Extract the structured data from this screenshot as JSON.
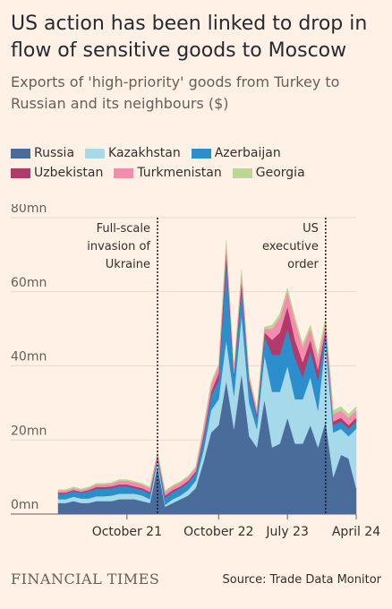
{
  "title": "US action has been linked to drop in flow of sensitive goods to Moscow",
  "subtitle": "Exports of 'high-priority' goods from Turkey to Russian and its neighbours ($)",
  "source": "Source: Trade Data Monitor",
  "brand": "FINANCIAL TIMES",
  "chart_data": {
    "type": "area",
    "stacked": true,
    "x": [
      "2021-01",
      "2021-02",
      "2021-03",
      "2021-04",
      "2021-05",
      "2021-06",
      "2021-07",
      "2021-08",
      "2021-09",
      "2021-10",
      "2021-11",
      "2021-12",
      "2022-01",
      "2022-02",
      "2022-03",
      "2022-04",
      "2022-05",
      "2022-06",
      "2022-07",
      "2022-08",
      "2022-09",
      "2022-10",
      "2022-11",
      "2022-12",
      "2023-01",
      "2023-02",
      "2023-03",
      "2023-04",
      "2023-05",
      "2023-06",
      "2023-07",
      "2023-08",
      "2023-09",
      "2023-10",
      "2023-11",
      "2023-12",
      "2024-01",
      "2024-02",
      "2024-03",
      "2024-04"
    ],
    "xticks": [
      {
        "label": "October 21",
        "month": "2021-10"
      },
      {
        "label": "October 22",
        "month": "2022-10"
      },
      {
        "label": "July 23",
        "month": "2023-07"
      },
      {
        "label": "April 24",
        "month": "2024-04"
      }
    ],
    "ylim": [
      0,
      80
    ],
    "yticks": [
      {
        "value": 0,
        "label": "0mn"
      },
      {
        "value": 20,
        "label": "20mn"
      },
      {
        "value": 40,
        "label": "40mn"
      },
      {
        "value": 60,
        "label": "60mn"
      },
      {
        "value": 80,
        "label": "80mn"
      }
    ],
    "series": [
      {
        "name": "Russia",
        "color": "#4a6c9b",
        "values": [
          3,
          3,
          3.5,
          3,
          3,
          3.5,
          3.5,
          3.5,
          4,
          4,
          4,
          3.5,
          3,
          13,
          2,
          3,
          4,
          5,
          7,
          14,
          22,
          24,
          36,
          23,
          38,
          21,
          18,
          31,
          18,
          19,
          26,
          19,
          19,
          24,
          18,
          25,
          10,
          16,
          15,
          7
        ]
      },
      {
        "name": "Kazakhstan",
        "color": "#a6d9ea",
        "values": [
          1,
          1,
          1.2,
          1.2,
          1.2,
          1.3,
          1.3,
          1.5,
          1.5,
          1.5,
          1.5,
          1.5,
          1,
          1.5,
          0.5,
          1,
          1,
          1.5,
          2,
          3,
          6,
          7,
          11,
          9,
          16,
          9,
          5,
          12,
          15,
          14,
          14,
          12,
          12,
          13,
          10,
          22,
          12,
          7,
          6,
          16
        ]
      },
      {
        "name": "Azerbaijan",
        "color": "#2a8fca",
        "values": [
          1.5,
          1.5,
          1.5,
          1.5,
          2,
          2,
          2,
          2,
          2,
          2,
          1.5,
          1.5,
          1.5,
          0.5,
          2,
          2,
          2,
          2,
          2,
          3,
          4,
          5,
          21,
          5,
          7,
          5,
          3,
          5,
          10,
          10,
          10,
          11,
          6,
          7,
          8,
          2,
          2,
          2,
          2,
          2
        ]
      },
      {
        "name": "Uzbekistan",
        "color": "#b23a6b",
        "values": [
          0.3,
          0.3,
          0.3,
          0.3,
          0.3,
          0.5,
          0.5,
          0.5,
          0.5,
          0.5,
          0.5,
          0.5,
          0.5,
          0.5,
          0.5,
          0.5,
          0.5,
          0.5,
          0.5,
          1,
          1,
          2,
          3,
          1,
          2,
          1,
          1,
          1,
          4,
          6,
          6,
          5,
          4,
          3,
          3,
          1,
          1,
          1,
          1,
          1
        ]
      },
      {
        "name": "Turkmenistan",
        "color": "#f48cae",
        "values": [
          0.5,
          0.5,
          0.5,
          0.5,
          0.5,
          0.7,
          0.7,
          0.7,
          1,
          1,
          1,
          1,
          1,
          1,
          1,
          1,
          1,
          1,
          1,
          2,
          2,
          2,
          2,
          1,
          2,
          1,
          1,
          1,
          3,
          4,
          4,
          5,
          4,
          3,
          3,
          2,
          2,
          2,
          2,
          2
        ]
      },
      {
        "name": "Georgia",
        "color": "#bcd696",
        "values": [
          0.3,
          0.3,
          0.3,
          0.3,
          0.3,
          0.3,
          0.3,
          0.3,
          0.3,
          0.3,
          0.3,
          0.3,
          0.3,
          0.3,
          0.3,
          0.3,
          0.3,
          0.3,
          0.3,
          0.3,
          0.5,
          0.5,
          1,
          0.5,
          1,
          0.5,
          0.5,
          0.5,
          1,
          1,
          1,
          1,
          1,
          1,
          1,
          1,
          1,
          1,
          1,
          1
        ]
      }
    ],
    "annotations": [
      {
        "month": "2022-02",
        "lines": [
          "Full-scale",
          "invasion of",
          "Ukraine"
        ]
      },
      {
        "month": "2023-12",
        "lines": [
          "US",
          "executive",
          "order"
        ]
      }
    ],
    "legend_position": "top-left",
    "grid": true
  }
}
